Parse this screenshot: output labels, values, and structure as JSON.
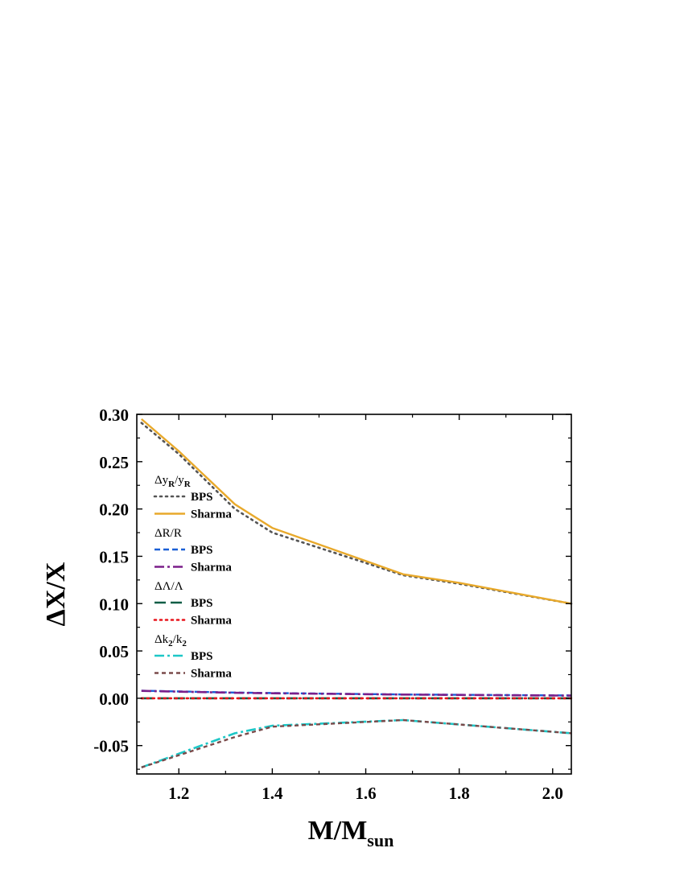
{
  "chart_data": {
    "type": "line",
    "xlabel": "M/M",
    "xlabel_sub": "sun",
    "ylabel": "ΔX/X",
    "xlim": [
      1.11,
      2.04
    ],
    "ylim": [
      -0.08,
      0.3
    ],
    "xticks": [
      1.2,
      1.4,
      1.6,
      1.8,
      2.0
    ],
    "xtick_labels": [
      "1.2",
      "1.4",
      "1.6",
      "1.8",
      "2.0"
    ],
    "yticks": [
      -0.05,
      0.0,
      0.05,
      0.1,
      0.15,
      0.2,
      0.25,
      0.3
    ],
    "ytick_labels": [
      "-0.05",
      "0.00",
      "0.05",
      "0.10",
      "0.15",
      "0.20",
      "0.25",
      "0.30"
    ],
    "legend_position": "left",
    "groups": [
      {
        "label": "Δy",
        "label_parts": [
          [
            "Δy",
            "n"
          ],
          [
            "R",
            "s"
          ],
          [
            "/y",
            "n"
          ],
          [
            "R",
            "s"
          ]
        ],
        "series": [
          {
            "name": "BPS",
            "color": "#555555",
            "style": "dotted",
            "x": [
              1.12,
              1.2,
              1.32,
              1.4,
              1.6,
              1.68,
              1.8,
              2.04
            ],
            "y": [
              0.291,
              0.258,
              0.2,
              0.175,
              0.143,
              0.13,
              0.121,
              0.1
            ]
          },
          {
            "name": "Sharma",
            "color": "#E8A92B",
            "style": "solid",
            "x": [
              1.12,
              1.2,
              1.32,
              1.4,
              1.6,
              1.68,
              1.8,
              2.04
            ],
            "y": [
              0.295,
              0.261,
              0.205,
              0.18,
              0.145,
              0.131,
              0.122,
              0.1
            ]
          }
        ]
      },
      {
        "label": "ΔR/R",
        "label_parts": [
          [
            "ΔR/R",
            "n"
          ]
        ],
        "series": [
          {
            "name": "BPS",
            "color": "#1A5FD6",
            "style": "dash",
            "x": [
              1.12,
              1.32,
              1.4,
              1.68,
              2.04
            ],
            "y": [
              0.008,
              0.006,
              0.0055,
              0.004,
              0.003
            ]
          },
          {
            "name": "Sharma",
            "color": "#7B1F8A",
            "style": "dashdot",
            "x": [
              1.12,
              1.32,
              1.4,
              1.68,
              2.04
            ],
            "y": [
              0.0078,
              0.0058,
              0.0053,
              0.0039,
              0.0028
            ]
          }
        ]
      },
      {
        "label": "ΔΛ/Λ",
        "label_parts": [
          [
            "ΔΛ/Λ",
            "n"
          ]
        ],
        "series": [
          {
            "name": "BPS",
            "color": "#0F5E46",
            "style": "longdash",
            "x": [
              1.12,
              2.04
            ],
            "y": [
              0.0,
              0.0
            ]
          },
          {
            "name": "Sharma",
            "color": "#E8141B",
            "style": "dotted",
            "x": [
              1.12,
              2.04
            ],
            "y": [
              0.0,
              0.0
            ]
          }
        ]
      },
      {
        "label": "Δk",
        "label_parts": [
          [
            "Δk",
            "n"
          ],
          [
            "2",
            "s"
          ],
          [
            "/k",
            "n"
          ],
          [
            "2",
            "s"
          ]
        ],
        "series": [
          {
            "name": "BPS",
            "color": "#1EC7C7",
            "style": "dashdot",
            "x": [
              1.12,
              1.32,
              1.4,
              1.68,
              2.04
            ],
            "y": [
              -0.073,
              -0.037,
              -0.029,
              -0.023,
              -0.037
            ]
          },
          {
            "name": "Sharma",
            "color": "#7A4A4A",
            "style": "shortdash",
            "x": [
              1.12,
              1.32,
              1.4,
              1.68,
              2.04
            ],
            "y": [
              -0.073,
              -0.041,
              -0.03,
              -0.023,
              -0.037
            ]
          }
        ]
      }
    ]
  }
}
